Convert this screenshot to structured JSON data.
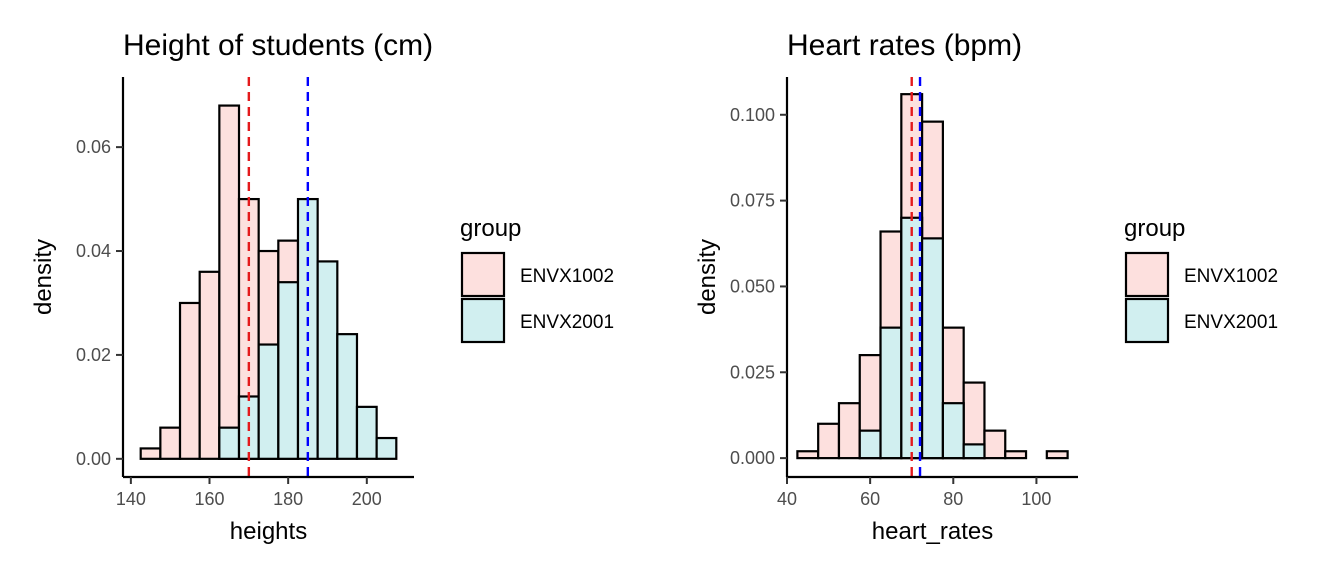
{
  "chart_data": [
    {
      "type": "histogram",
      "title": "Height of students (cm)",
      "xlabel": "heights",
      "ylabel": "density",
      "xlim": [
        138,
        212
      ],
      "ylim": [
        -0.0035,
        0.0735
      ],
      "x_ticks": [
        140,
        160,
        180,
        200
      ],
      "x_tick_labels": [
        "140",
        "160",
        "180",
        "200"
      ],
      "y_ticks": [
        0,
        0.02,
        0.04,
        0.06
      ],
      "y_tick_labels": [
        "0.00",
        "0.02",
        "0.04",
        "0.06"
      ],
      "bin_edges": [
        142.5,
        147.5,
        152.5,
        157.5,
        162.5,
        167.5,
        172.5,
        177.5,
        182.5,
        187.5,
        192.5,
        197.5,
        202.5,
        207.5
      ],
      "series": [
        {
          "name": "ENVX1002",
          "values": [
            0.002,
            0.006,
            0.03,
            0.036,
            0.068,
            0.05,
            0.04,
            0.042,
            0.0,
            0.0,
            0.0,
            0.0,
            0.0
          ]
        },
        {
          "name": "ENVX2001",
          "values": [
            0.0,
            0.0,
            0.0,
            0.0,
            0.006,
            0.012,
            0.022,
            0.034,
            0.05,
            0.038,
            0.024,
            0.01,
            0.004
          ]
        }
      ],
      "means": [
        {
          "group": "ENVX1002",
          "value": 170
        },
        {
          "group": "ENVX2001",
          "value": 185
        }
      ],
      "legend": {
        "title": "group",
        "position": "right"
      },
      "grid": false
    },
    {
      "type": "histogram",
      "title": "Heart rates (bpm)",
      "xlabel": "heart_rates",
      "ylabel": "density",
      "xlim": [
        40,
        110
      ],
      "ylim": [
        -0.0055,
        0.111
      ],
      "x_ticks": [
        40,
        60,
        80,
        100
      ],
      "x_tick_labels": [
        "40",
        "60",
        "80",
        "100"
      ],
      "y_ticks": [
        0,
        0.025,
        0.05,
        0.075,
        0.1
      ],
      "y_tick_labels": [
        "0.000",
        "0.025",
        "0.050",
        "0.075",
        "0.100"
      ],
      "bin_edges": [
        42.5,
        47.5,
        52.5,
        57.5,
        62.5,
        67.5,
        72.5,
        77.5,
        82.5,
        87.5,
        92.5,
        97.5,
        102.5,
        107.5
      ],
      "series": [
        {
          "name": "ENVX1002",
          "values": [
            0.002,
            0.01,
            0.016,
            0.03,
            0.066,
            0.106,
            0.098,
            0.038,
            0.022,
            0.008,
            0.002,
            0.0,
            0.002
          ]
        },
        {
          "name": "ENVX2001",
          "values": [
            0.0,
            0.0,
            0.0,
            0.008,
            0.038,
            0.07,
            0.064,
            0.016,
            0.004,
            0.0,
            0.0,
            0.0,
            0.0
          ]
        }
      ],
      "means": [
        {
          "group": "ENVX1002",
          "value": 70
        },
        {
          "group": "ENVX2001",
          "value": 72
        }
      ],
      "legend": {
        "title": "group",
        "position": "right"
      },
      "grid": false
    }
  ],
  "colors": {
    "ENVX1002_fill": "#fde0de",
    "ENVX2001_fill": "#d1eff0",
    "ENVX1002_mean_line": "#e41a1c",
    "ENVX2001_mean_line": "#0000ff",
    "bar_outline": "#000000",
    "tick_label": "#4d4d4d"
  }
}
